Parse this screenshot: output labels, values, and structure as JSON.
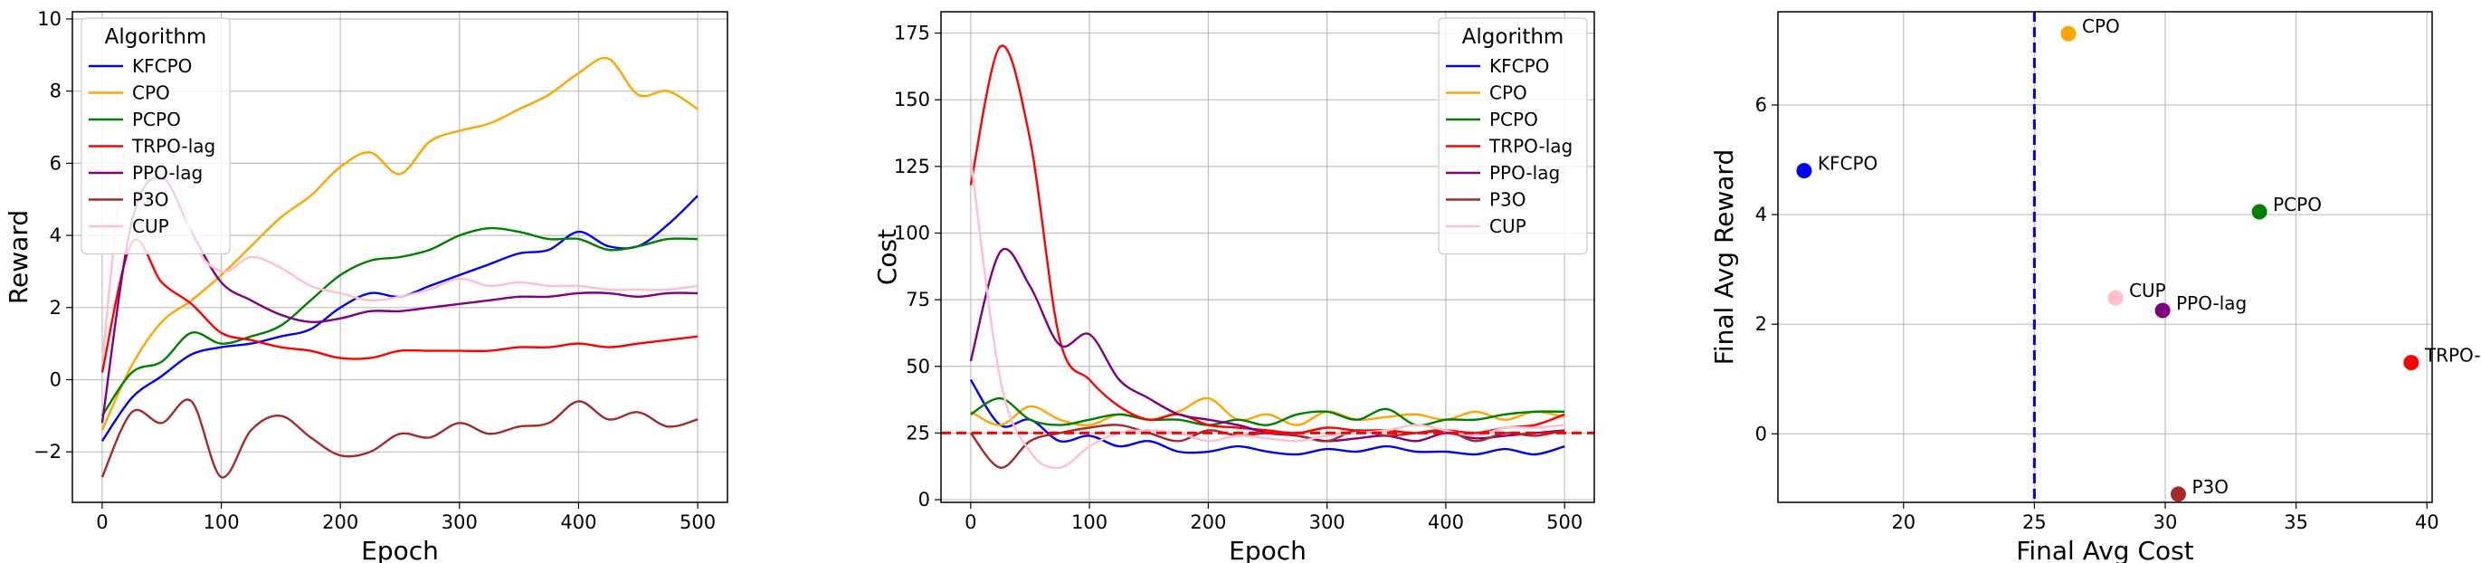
{
  "chart_data": [
    {
      "type": "line",
      "xlabel": "Epoch",
      "ylabel": "Reward",
      "xlim": [
        -25,
        525
      ],
      "ylim": [
        -3.4,
        10.2
      ],
      "xticks": [
        0,
        100,
        200,
        300,
        400,
        500
      ],
      "yticks": [
        -2,
        0,
        2,
        4,
        6,
        8,
        10
      ],
      "grid": true,
      "legend": {
        "title": "Algorithm",
        "placement": "top-left"
      },
      "x": [
        0,
        25,
        50,
        75,
        100,
        125,
        150,
        175,
        200,
        225,
        250,
        275,
        300,
        325,
        350,
        375,
        400,
        425,
        450,
        475,
        500
      ],
      "series": [
        {
          "name": "KFCPO",
          "color": "#0000ff",
          "values": [
            -1.7,
            -0.5,
            0.1,
            0.7,
            0.9,
            1.0,
            1.2,
            1.4,
            2.0,
            2.4,
            2.3,
            2.6,
            2.9,
            3.2,
            3.5,
            3.6,
            4.1,
            3.7,
            3.7,
            4.3,
            5.1
          ]
        },
        {
          "name": "CPO",
          "color": "#ffa500",
          "values": [
            -1.4,
            0.4,
            1.6,
            2.2,
            2.9,
            3.7,
            4.5,
            5.1,
            5.9,
            6.3,
            5.7,
            6.6,
            6.9,
            7.1,
            7.5,
            7.9,
            8.5,
            8.9,
            7.9,
            8.0,
            7.5
          ]
        },
        {
          "name": "PCPO",
          "color": "#008000",
          "values": [
            -1.0,
            0.2,
            0.5,
            1.3,
            1.0,
            1.2,
            1.5,
            2.2,
            2.9,
            3.3,
            3.4,
            3.6,
            4.0,
            4.2,
            4.1,
            3.9,
            3.9,
            3.6,
            3.7,
            3.9,
            3.9
          ]
        },
        {
          "name": "TRPO-lag",
          "color": "#ff0000",
          "values": [
            0.2,
            3.8,
            2.7,
            2.1,
            1.3,
            1.1,
            0.9,
            0.8,
            0.6,
            0.6,
            0.8,
            0.8,
            0.8,
            0.8,
            0.9,
            0.9,
            1.0,
            0.9,
            1.0,
            1.1,
            1.2
          ]
        },
        {
          "name": "PPO-lag",
          "color": "#800080",
          "values": [
            -1.2,
            4.4,
            5.6,
            4.1,
            2.7,
            2.2,
            1.8,
            1.6,
            1.7,
            1.9,
            1.9,
            2.0,
            2.1,
            2.2,
            2.3,
            2.3,
            2.4,
            2.4,
            2.3,
            2.4,
            2.4
          ]
        },
        {
          "name": "P3O",
          "color": "#a52a2a",
          "values": [
            -2.7,
            -0.9,
            -1.2,
            -0.6,
            -2.7,
            -1.4,
            -1.0,
            -1.6,
            -2.1,
            -2.0,
            -1.5,
            -1.6,
            -1.2,
            -1.5,
            -1.3,
            -1.2,
            -0.6,
            -1.1,
            -0.9,
            -1.3,
            -1.1
          ]
        },
        {
          "name": "CUP",
          "color": "#ffc0cb",
          "values": [
            0.5,
            7.7,
            7.4,
            4.0,
            3.0,
            3.4,
            3.1,
            2.6,
            2.4,
            2.2,
            2.3,
            2.5,
            2.8,
            2.6,
            2.7,
            2.6,
            2.6,
            2.5,
            2.5,
            2.5,
            2.6
          ]
        }
      ]
    },
    {
      "type": "line",
      "xlabel": "Epoch",
      "ylabel": "Cost",
      "xlim": [
        -25,
        525
      ],
      "ylim": [
        -1,
        183
      ],
      "xticks": [
        0,
        100,
        200,
        300,
        400,
        500
      ],
      "yticks": [
        0,
        25,
        50,
        75,
        100,
        125,
        150,
        175
      ],
      "grid": true,
      "threshold": {
        "value": 25,
        "color": "#ff0000",
        "style": "dashed"
      },
      "legend": {
        "title": "Algorithm",
        "placement": "top-right"
      },
      "x": [
        0,
        25,
        50,
        75,
        100,
        125,
        150,
        175,
        200,
        225,
        250,
        275,
        300,
        325,
        350,
        375,
        400,
        425,
        450,
        475,
        500
      ],
      "series": [
        {
          "name": "KFCPO",
          "color": "#0000ff",
          "values": [
            45,
            28,
            30,
            22,
            24,
            20,
            22,
            18,
            18,
            20,
            18,
            17,
            19,
            18,
            20,
            18,
            18,
            17,
            19,
            17,
            20
          ]
        },
        {
          "name": "CPO",
          "color": "#ffa500",
          "values": [
            33,
            28,
            35,
            30,
            28,
            32,
            30,
            33,
            38,
            30,
            32,
            28,
            33,
            30,
            31,
            32,
            30,
            33,
            30,
            33,
            31
          ]
        },
        {
          "name": "PCPO",
          "color": "#008000",
          "values": [
            32,
            38,
            30,
            28,
            30,
            32,
            30,
            30,
            28,
            30,
            28,
            32,
            33,
            30,
            34,
            28,
            30,
            30,
            32,
            33,
            33
          ]
        },
        {
          "name": "TRPO-lag",
          "color": "#ff0000",
          "values": [
            118,
            170,
            135,
            60,
            45,
            35,
            30,
            32,
            28,
            27,
            26,
            25,
            27,
            26,
            26,
            25,
            26,
            25,
            27,
            28,
            32
          ]
        },
        {
          "name": "PPO-lag",
          "color": "#800080",
          "values": [
            52,
            93,
            80,
            58,
            62,
            45,
            38,
            32,
            30,
            28,
            25,
            24,
            22,
            23,
            24,
            22,
            25,
            23,
            24,
            25,
            26
          ]
        },
        {
          "name": "P3O",
          "color": "#a52a2a",
          "values": [
            25,
            12,
            22,
            25,
            27,
            28,
            25,
            22,
            26,
            24,
            25,
            24,
            22,
            26,
            24,
            25,
            26,
            22,
            25,
            24,
            26
          ]
        },
        {
          "name": "CUP",
          "color": "#ffc0cb",
          "values": [
            128,
            45,
            18,
            12,
            20,
            25,
            26,
            25,
            22,
            24,
            23,
            22,
            24,
            25,
            26,
            28,
            26,
            24,
            27,
            27,
            28
          ]
        }
      ]
    },
    {
      "type": "scatter",
      "xlabel": "Final Avg Cost",
      "ylabel": "Final Avg Reward",
      "xlim": [
        15.2,
        40.2
      ],
      "ylim": [
        -1.25,
        7.7
      ],
      "xticks": [
        20,
        25,
        30,
        35,
        40
      ],
      "yticks": [
        0,
        2,
        4,
        6
      ],
      "grid": true,
      "threshold": {
        "axis": "x",
        "value": 25,
        "color": "#0000ff",
        "style": "dashed"
      },
      "points": [
        {
          "label": "KFCPO",
          "x": 16.2,
          "y": 4.8,
          "color": "#0000ff"
        },
        {
          "label": "CPO",
          "x": 26.3,
          "y": 7.3,
          "color": "#ffa500"
        },
        {
          "label": "PCPO",
          "x": 33.6,
          "y": 4.05,
          "color": "#008000"
        },
        {
          "label": "CUP",
          "x": 28.1,
          "y": 2.48,
          "color": "#ffc0cb"
        },
        {
          "label": "PPO-lag",
          "x": 29.9,
          "y": 2.25,
          "color": "#800080"
        },
        {
          "label": "TRPO-lag",
          "x": 39.4,
          "y": 1.3,
          "color": "#ff0000"
        },
        {
          "label": "P3O",
          "x": 30.5,
          "y": -1.1,
          "color": "#a52a2a"
        }
      ]
    }
  ]
}
